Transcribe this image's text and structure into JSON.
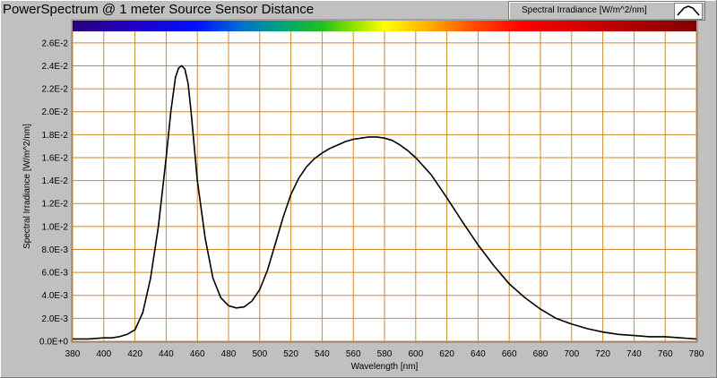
{
  "window": {
    "title": "PowerSpectrum @ 1 meter Source Sensor Distance"
  },
  "legend": {
    "label": "Spectral Irradiance [W/m^2/nm]",
    "icon": "line-sample-icon"
  },
  "colors": {
    "plot_bg": "#ffffff",
    "grid": "#d08a2a",
    "curve": "#000000",
    "panel": "#c0c0c0"
  },
  "chart_data": {
    "type": "line",
    "title": "PowerSpectrum @ 1 meter Source Sensor Distance",
    "xlabel": "Wavelength [nm]",
    "ylabel": "Spectral Irradiance [W/m^2/nm]",
    "xlim": [
      380,
      780
    ],
    "ylim": [
      0,
      0.027
    ],
    "grid": true,
    "legend_position": "top-right",
    "x_ticks": [
      380,
      400,
      420,
      440,
      460,
      480,
      500,
      520,
      540,
      560,
      580,
      600,
      620,
      640,
      660,
      680,
      700,
      720,
      740,
      760,
      780
    ],
    "y_ticks": [
      {
        "value": 0,
        "label": "0.0E+0"
      },
      {
        "value": 0.002,
        "label": "2.0E-3"
      },
      {
        "value": 0.004,
        "label": "4.0E-3"
      },
      {
        "value": 0.006,
        "label": "6.0E-3"
      },
      {
        "value": 0.008,
        "label": "8.0E-3"
      },
      {
        "value": 0.01,
        "label": "1.0E-2"
      },
      {
        "value": 0.012,
        "label": "1.2E-2"
      },
      {
        "value": 0.014,
        "label": "1.4E-2"
      },
      {
        "value": 0.016,
        "label": "1.6E-2"
      },
      {
        "value": 0.018,
        "label": "1.8E-2"
      },
      {
        "value": 0.02,
        "label": "2.0E-2"
      },
      {
        "value": 0.022,
        "label": "2.2E-2"
      },
      {
        "value": 0.024,
        "label": "2.4E-2"
      },
      {
        "value": 0.026,
        "label": "2.6E-2"
      }
    ],
    "series": [
      {
        "x": [
          380,
          390,
          400,
          405,
          410,
          415,
          420,
          425,
          430,
          435,
          440,
          443,
          446,
          448,
          450,
          452,
          454,
          456,
          458,
          460,
          465,
          470,
          475,
          480,
          485,
          490,
          495,
          500,
          505,
          510,
          515,
          520,
          525,
          530,
          535,
          540,
          545,
          550,
          555,
          560,
          565,
          570,
          575,
          580,
          585,
          590,
          595,
          600,
          610,
          620,
          630,
          640,
          650,
          660,
          670,
          680,
          690,
          700,
          710,
          720,
          730,
          740,
          750,
          760,
          770,
          780
        ],
        "y": [
          0.0002,
          0.0002,
          0.0003,
          0.0003,
          0.0004,
          0.0006,
          0.001,
          0.0025,
          0.0055,
          0.01,
          0.016,
          0.02,
          0.023,
          0.0238,
          0.024,
          0.0237,
          0.0225,
          0.02,
          0.017,
          0.014,
          0.009,
          0.0055,
          0.0038,
          0.0031,
          0.0029,
          0.003,
          0.0035,
          0.0045,
          0.0062,
          0.0085,
          0.0108,
          0.0128,
          0.0142,
          0.0152,
          0.0159,
          0.0164,
          0.0168,
          0.0171,
          0.0174,
          0.0176,
          0.0177,
          0.0178,
          0.0178,
          0.0177,
          0.0175,
          0.0171,
          0.0166,
          0.016,
          0.0145,
          0.0125,
          0.0104,
          0.0084,
          0.0066,
          0.005,
          0.0038,
          0.0028,
          0.002,
          0.0015,
          0.0011,
          0.0008,
          0.0006,
          0.0005,
          0.0004,
          0.0004,
          0.0003,
          0.0002
        ]
      }
    ]
  }
}
